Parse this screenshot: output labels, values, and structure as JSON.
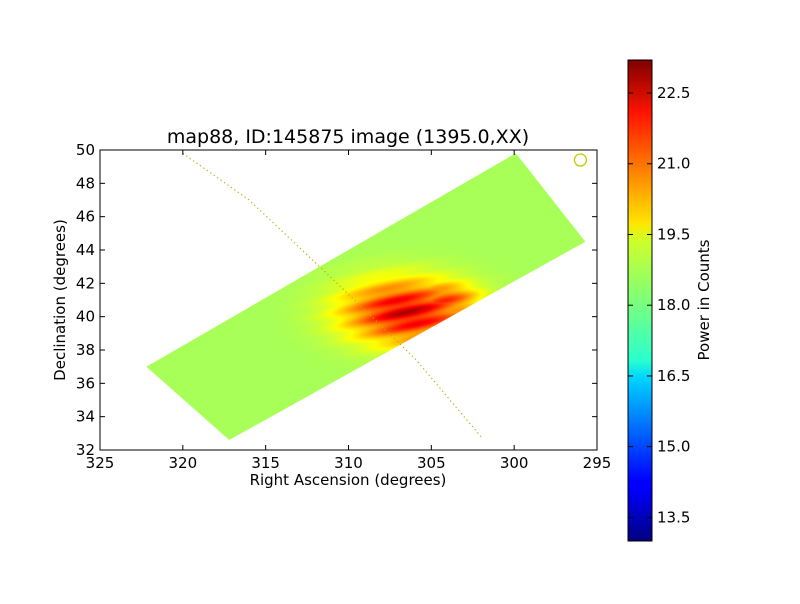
{
  "chart_data": {
    "type": "heatmap",
    "title": "map88, ID:145875 image (1395.0,XX)",
    "xlabel": "Right Ascension (degrees)",
    "ylabel": "Declination (degrees)",
    "xlim": [
      325,
      295
    ],
    "ylim": [
      32,
      50
    ],
    "xticks": [
      "325",
      "320",
      "315",
      "310",
      "305",
      "300",
      "295"
    ],
    "yticks": [
      "32",
      "34",
      "36",
      "38",
      "40",
      "42",
      "44",
      "46",
      "48",
      "50"
    ],
    "grid": false,
    "colormap": "jet",
    "colorbar": {
      "label": "Power in Counts",
      "range": [
        13.0,
        23.2
      ],
      "ticks": [
        "13.5",
        "15.0",
        "16.5",
        "18.0",
        "19.5",
        "21.0",
        "22.5"
      ]
    },
    "coverage_polygon": [
      [
        322.2,
        37.0
      ],
      [
        317.2,
        32.6
      ],
      [
        295.7,
        44.5
      ],
      [
        299.9,
        49.8
      ],
      [
        322.2,
        37.0
      ]
    ],
    "background_level": 18.5,
    "hot_spots": [
      {
        "ra": 306.5,
        "dec": 40.3,
        "peak": 22.8,
        "sigma_ra": 2.6,
        "sigma_dec": 1.3
      },
      {
        "ra": 304.2,
        "dec": 41.0,
        "peak": 21.6,
        "sigma_ra": 1.5,
        "sigma_dec": 0.8
      }
    ],
    "overlay_curve": {
      "style": "dotted",
      "color": "#b2b200",
      "points": [
        [
          320.0,
          49.8
        ],
        [
          316.0,
          47.0
        ],
        [
          311.0,
          42.3
        ],
        [
          306.0,
          37.5
        ],
        [
          302.0,
          32.8
        ]
      ]
    },
    "overlay_marker": {
      "ra": 296.0,
      "dec": 49.4,
      "shape": "circle",
      "color": "#c8c800"
    }
  }
}
